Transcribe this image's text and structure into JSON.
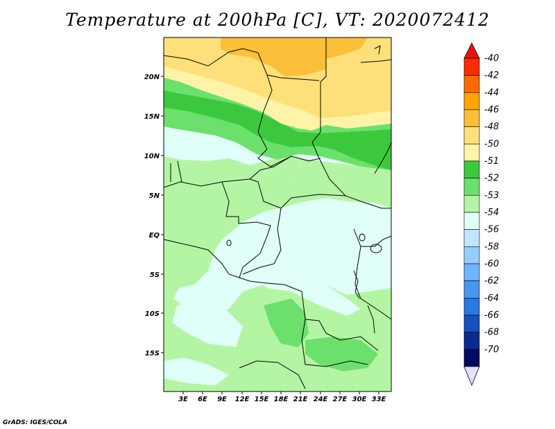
{
  "title": "Temperature at 200hPa [C], VT: 2020072412",
  "credit": "GrADS: IGES/COLA",
  "map": {
    "lat_ticks": [
      "20N",
      "15N",
      "10N",
      "5N",
      "EQ",
      "5S",
      "10S",
      "15S"
    ],
    "lon_ticks": [
      "3E",
      "6E",
      "9E",
      "12E",
      "15E",
      "18E",
      "21E",
      "24E",
      "27E",
      "30E",
      "33E"
    ]
  },
  "legend": {
    "labels": [
      "-40",
      "-42",
      "-44",
      "-46",
      "-48",
      "-50",
      "-51",
      "-52",
      "-53",
      "-54",
      "-56",
      "-58",
      "-60",
      "-62",
      "-64",
      "-66",
      "-68",
      "-70"
    ],
    "colors": [
      "#ff2a00",
      "#ff6a00",
      "#ffa500",
      "#fbbf3a",
      "#fde07a",
      "#fff3a8",
      "#3cc83c",
      "#6ce06c",
      "#b4f5a4",
      "#e0fff8",
      "#c0e6ff",
      "#96cdff",
      "#6eb4ff",
      "#4896f0",
      "#2a78e0",
      "#1450c0",
      "#0a2a90",
      "#000a60"
    ],
    "top_color": "#e8140a",
    "bottom_color": "#e0e0ff"
  }
}
